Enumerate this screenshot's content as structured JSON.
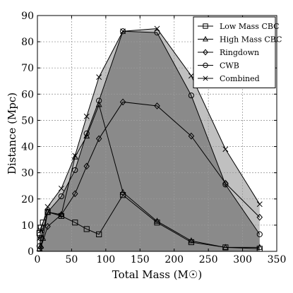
{
  "chart_data": {
    "type": "line",
    "title": "",
    "xlabel": "Total Mass (M☉)",
    "ylabel": "Distance (Mpc)",
    "xlim": [
      0,
      350
    ],
    "ylim": [
      0,
      90
    ],
    "xticks": [
      0,
      50,
      100,
      150,
      200,
      250,
      300,
      350
    ],
    "yticks": [
      0,
      10,
      20,
      30,
      40,
      50,
      60,
      70,
      80,
      90
    ],
    "grid": true,
    "legend_position": "top-right",
    "shading": {
      "envelope_fill": "#c0c0c0",
      "inner_fill": "#8a8a8a"
    },
    "series": [
      {
        "name": "Low Mass CBC",
        "marker": "square",
        "points": [
          [
            3,
            7
          ],
          [
            5,
            9
          ],
          [
            8,
            11
          ],
          [
            15,
            15
          ],
          [
            35,
            13.5
          ],
          [
            55,
            11
          ],
          [
            72,
            8.5
          ],
          [
            90,
            6.5
          ],
          [
            125,
            21.5
          ],
          [
            175,
            11
          ],
          [
            225,
            3.5
          ],
          [
            275,
            1.5
          ],
          [
            325,
            1
          ]
        ]
      },
      {
        "name": "High Mass CBC",
        "marker": "triangle",
        "points": [
          [
            3,
            1
          ],
          [
            5,
            2
          ],
          [
            8,
            5
          ],
          [
            15,
            15
          ],
          [
            35,
            14
          ],
          [
            55,
            36
          ],
          [
            72,
            44
          ],
          [
            90,
            56
          ],
          [
            125,
            22.5
          ],
          [
            175,
            11.5
          ],
          [
            225,
            4
          ],
          [
            275,
            1.5
          ],
          [
            325,
            1.5
          ]
        ]
      },
      {
        "name": "Ringdown",
        "marker": "diamond",
        "points": [
          [
            5,
            1.5
          ],
          [
            15,
            9.5
          ],
          [
            35,
            14
          ],
          [
            55,
            22
          ],
          [
            72,
            32.5
          ],
          [
            90,
            43
          ],
          [
            125,
            57
          ],
          [
            175,
            55.5
          ],
          [
            225,
            44
          ],
          [
            275,
            26
          ],
          [
            325,
            13
          ]
        ]
      },
      {
        "name": "CWB",
        "marker": "circle",
        "points": [
          [
            3,
            2
          ],
          [
            5,
            5
          ],
          [
            15,
            15
          ],
          [
            35,
            21
          ],
          [
            55,
            31
          ],
          [
            72,
            45
          ],
          [
            90,
            57.5
          ],
          [
            125,
            84
          ],
          [
            175,
            83.5
          ],
          [
            225,
            59.5
          ],
          [
            275,
            25.5
          ],
          [
            325,
            6.5
          ]
        ]
      },
      {
        "name": "Combined",
        "marker": "x",
        "points": [
          [
            3,
            5
          ],
          [
            5,
            8
          ],
          [
            15,
            17
          ],
          [
            35,
            24
          ],
          [
            55,
            36.5
          ],
          [
            72,
            51.5
          ],
          [
            90,
            66.5
          ],
          [
            125,
            84
          ],
          [
            175,
            85
          ],
          [
            225,
            67
          ],
          [
            275,
            39
          ],
          [
            325,
            18
          ]
        ]
      }
    ]
  }
}
